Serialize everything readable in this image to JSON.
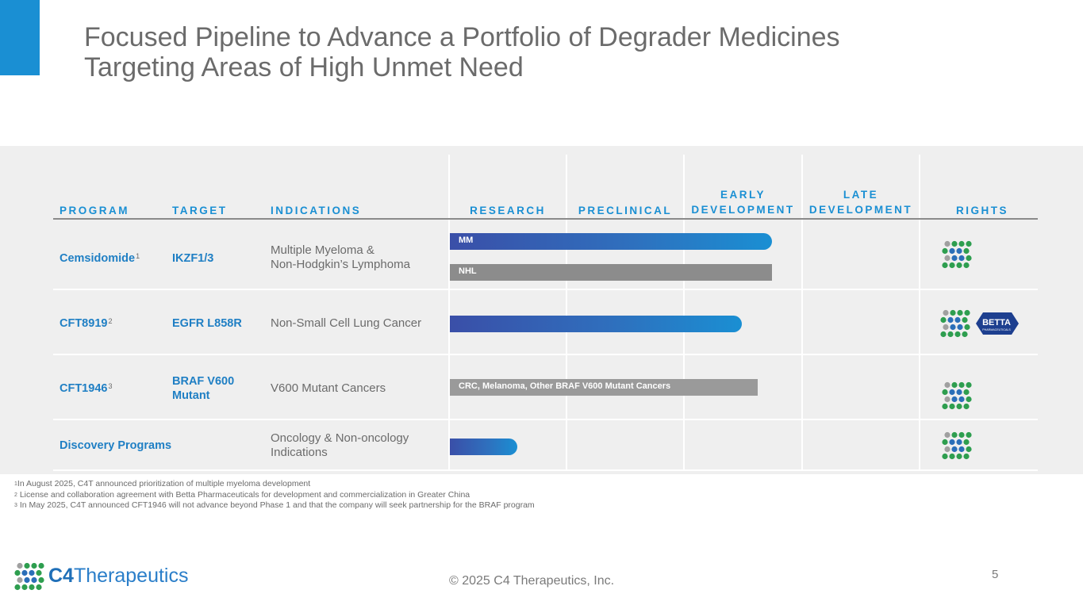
{
  "title": {
    "line1": "Focused Pipeline to Advance a Portfolio of Degrader Medicines",
    "line2": "Targeting Areas of High Unmet Need"
  },
  "table": {
    "headers": {
      "program": "PROGRAM",
      "target": "TARGET",
      "indications": "INDICATIONS",
      "research": "RESEARCH",
      "preclinical": "PRECLINICAL",
      "early_1": "EARLY",
      "early_2": "DEVELOPMENT",
      "late_1": "LATE",
      "late_2": "DEVELOPMENT",
      "rights": "RIGHTS"
    },
    "rows": [
      {
        "program": "Cemsidomide",
        "program_sup": "1",
        "target": "IKZF1/3",
        "indication_1": "Multiple Myeloma &",
        "indication_2": "Non-Hodgkin’s Lymphoma",
        "bars": [
          {
            "label": "MM",
            "progress": "Early Development (complete)"
          },
          {
            "label": "NHL",
            "progress": "Early Development (complete)"
          }
        ],
        "rights": [
          "c4-logo-icon"
        ]
      },
      {
        "program": "CFT8919",
        "program_sup": "2",
        "target": "EGFR L858R",
        "indication_1": "Non-Small Cell Lung Cancer",
        "bars": [
          {
            "label": "",
            "progress": "Early Development"
          }
        ],
        "rights": [
          "c4-logo-icon",
          "betta-logo"
        ],
        "betta_text": "BETTA",
        "betta_sub": "PHARMACEUTICALS"
      },
      {
        "program": "CFT1946",
        "program_sup": "3",
        "target_1": "BRAF V600",
        "target_2": "Mutant",
        "indication_1": "V600 Mutant Cancers",
        "bars": [
          {
            "label": "CRC, Melanoma, Other BRAF V600 Mutant Cancers",
            "progress": "Early Development"
          }
        ],
        "rights": [
          "c4-logo-icon"
        ]
      },
      {
        "program": "Discovery Programs",
        "indication_1": "Oncology & Non-oncology",
        "indication_2": "Indications",
        "bars": [
          {
            "label": "",
            "progress": "Research"
          }
        ],
        "rights": [
          "c4-logo-icon"
        ]
      }
    ]
  },
  "footnotes": {
    "n1_sup": "1",
    "n1": "In August 2025, C4T announced prioritization of multiple myeloma development",
    "n2_sup": "2",
    "n2": " License and collaboration agreement with Betta Pharmaceuticals for development and commercialization in Greater China",
    "n3_sup": "3",
    "n3": " In May 2025, C4T announced CFT1946 will not advance beyond Phase 1 and that the company will seek partnership for the BRAF program"
  },
  "footer": {
    "logo_c4": "C4",
    "logo_name": "Therapeutics",
    "copyright": "© 2025 C4 Therapeutics, Inc.",
    "page_number": "5"
  },
  "colors": {
    "accent": "#1a8fd3",
    "bar_blue_start": "#3a4fa8",
    "bar_blue_end": "#1a8fd3",
    "bar_gray": "#8c8c8c",
    "dot_green": "#2e9e4f",
    "dot_blue": "#2a6fb8",
    "dot_gray": "#a0a0a0"
  }
}
